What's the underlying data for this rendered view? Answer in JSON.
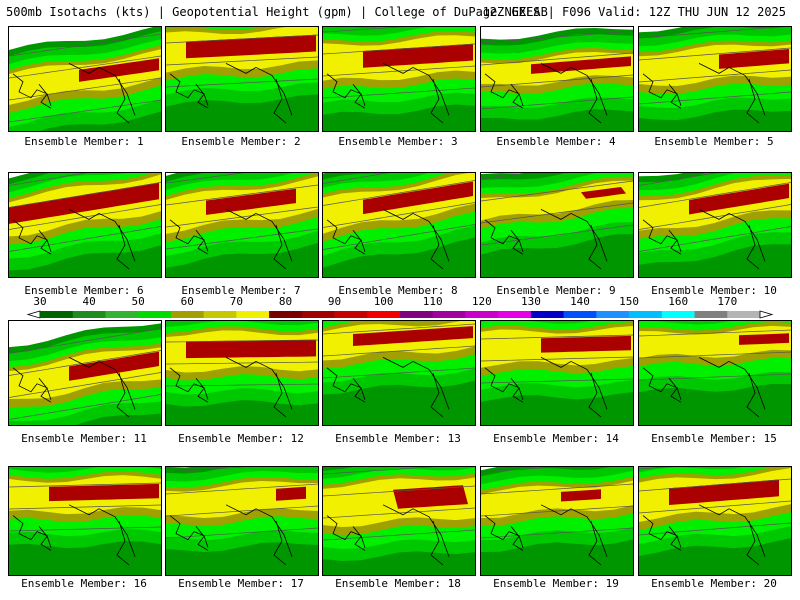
{
  "header": {
    "title_left": "500mb Isotachs (kts) | Geopotential Height (gpm) | College of DuPage NEXLAB",
    "title_right": "12Z GEFS | F096 Valid: 12Z THU JUN 12 2025"
  },
  "members": [
    {
      "label": "Ensemble Member: 1"
    },
    {
      "label": "Ensemble Member: 2"
    },
    {
      "label": "Ensemble Member: 3"
    },
    {
      "label": "Ensemble Member: 4"
    },
    {
      "label": "Ensemble Member: 5"
    },
    {
      "label": "Ensemble Member: 6"
    },
    {
      "label": "Ensemble Member: 7"
    },
    {
      "label": "Ensemble Member: 8"
    },
    {
      "label": "Ensemble Member: 9"
    },
    {
      "label": "Ensemble Member: 10"
    },
    {
      "label": "Ensemble Member: 11"
    },
    {
      "label": "Ensemble Member: 12"
    },
    {
      "label": "Ensemble Member: 13"
    },
    {
      "label": "Ensemble Member: 14"
    },
    {
      "label": "Ensemble Member: 15"
    },
    {
      "label": "Ensemble Member: 16"
    },
    {
      "label": "Ensemble Member: 17"
    },
    {
      "label": "Ensemble Member: 18"
    },
    {
      "label": "Ensemble Member: 19"
    },
    {
      "label": "Ensemble Member: 20"
    }
  ],
  "colorbar": {
    "labels": [
      "30",
      "40",
      "50",
      "60",
      "70",
      "80",
      "90",
      "100",
      "110",
      "120",
      "130",
      "140",
      "150",
      "160",
      "170"
    ],
    "colors": [
      "#006400",
      "#1e8c1e",
      "#32b432",
      "#00dc00",
      "#a0a000",
      "#c8c800",
      "#f0f000",
      "#7a0000",
      "#a00000",
      "#c80000",
      "#f00000",
      "#800080",
      "#a000a0",
      "#c800c8",
      "#e600e6",
      "#0000c8",
      "#0050ff",
      "#1e90ff",
      "#00bfff",
      "#00ffff",
      "#808080",
      "#b4b4b4"
    ]
  },
  "colors": {
    "green_dark": "#009600",
    "green_mid": "#00c800",
    "green_light": "#00f000",
    "olive": "#a0a000",
    "yellow": "#f0f000",
    "red_dark": "#aa0000",
    "coast": "#000000",
    "height_contour": "#555555"
  }
}
